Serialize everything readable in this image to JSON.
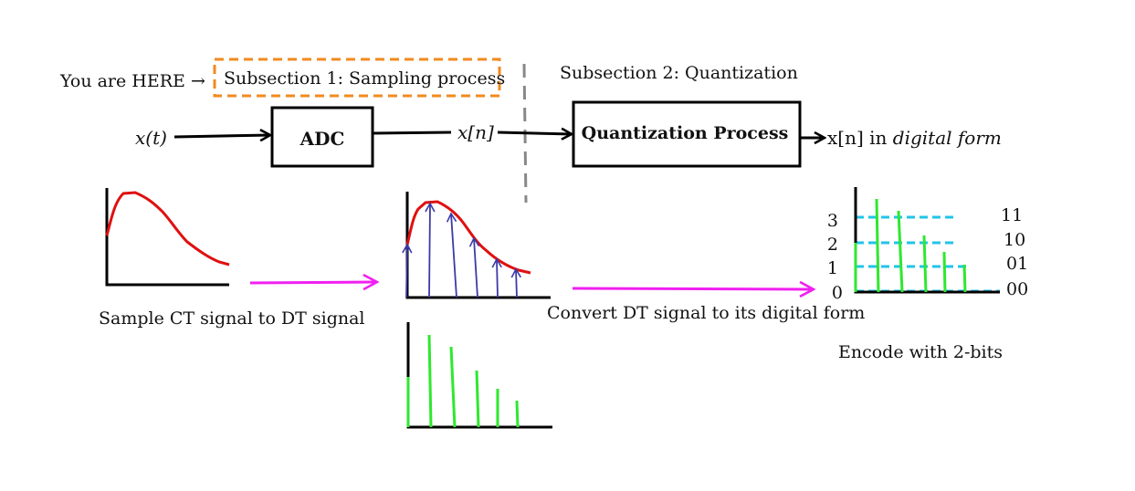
{
  "header": {
    "you_are_here": "You are HERE →",
    "subsection1": "Subsection 1: Sampling process",
    "subsection2": "Subsection 2: Quantization"
  },
  "pipeline": {
    "input": "x(t)",
    "adc": "ADC",
    "intermediate": "x[n]",
    "quantizer": "Quantization Process",
    "output_prefix": "x[n] in ",
    "output_emph": "digital form"
  },
  "captions": {
    "sample": "Sample CT signal to DT signal",
    "convert": "Convert DT signal to its digital form",
    "encode": "Encode with 2-bits"
  },
  "quant_levels": [
    {
      "level": "0",
      "code": "00"
    },
    {
      "level": "1",
      "code": "01"
    },
    {
      "level": "2",
      "code": "10"
    },
    {
      "level": "3",
      "code": "11"
    }
  ],
  "colors": {
    "highlight_box": "#f28a1f",
    "divider": "#888888",
    "signal": "#e01010",
    "sample_arrows": "#3a3aa8",
    "stems": "#2ee82e",
    "flow_arrow": "#f020f0",
    "levels": "#22c4e8"
  }
}
